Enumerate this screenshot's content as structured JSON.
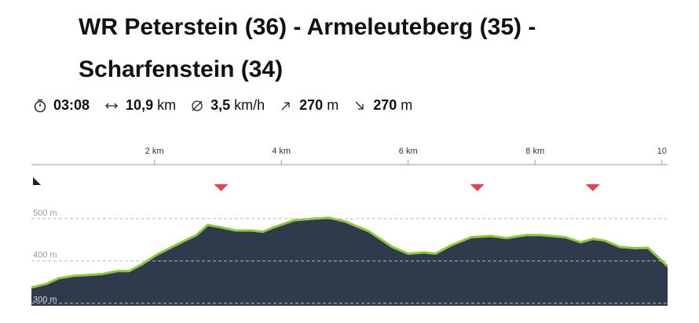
{
  "title": {
    "line1": "WR Peterstein (36) - Armeleuteberg (35) -",
    "line2": "Scharfenstein (34)"
  },
  "stats": {
    "duration": "03:08",
    "distance": "10,9",
    "distance_unit": "km",
    "speed": "3,5",
    "speed_unit": "km/h",
    "ascent": "270",
    "ascent_unit": "m",
    "descent": "270",
    "descent_unit": "m"
  },
  "chart_data": {
    "type": "area",
    "x": [
      0.06,
      0.3,
      0.49,
      0.74,
      0.98,
      1.17,
      1.42,
      1.6,
      1.79,
      2.04,
      2.41,
      2.66,
      2.84,
      3.03,
      3.28,
      3.52,
      3.71,
      3.89,
      4.2,
      4.51,
      4.76,
      5.01,
      5.38,
      5.75,
      6.0,
      6.25,
      6.43,
      6.68,
      6.99,
      7.3,
      7.55,
      7.86,
      8.1,
      8.48,
      8.72,
      8.91,
      9.1,
      9.34,
      9.59,
      9.78,
      9.96,
      10.09
    ],
    "series": [
      {
        "color": "#8dc63f",
        "fill": "#2f3a4c",
        "values": [
          337,
          346,
          359,
          365,
          367,
          369,
          376,
          376,
          391,
          415,
          443,
          461,
          485,
          480,
          472,
          472,
          469,
          480,
          496,
          500,
          502,
          493,
          470,
          433,
          417,
          420,
          417,
          437,
          456,
          459,
          454,
          461,
          461,
          456,
          444,
          452,
          448,
          433,
          430,
          431,
          406,
          387
        ]
      }
    ],
    "waypoints": {
      "color": "#e0464b",
      "x": [
        3.05,
        7.09,
        8.91
      ]
    },
    "xlim": [
      0.06,
      10.09
    ],
    "xticks": [
      {
        "value": 2,
        "label": "2 km"
      },
      {
        "value": 4,
        "label": "4 km"
      },
      {
        "value": 6,
        "label": "6 km"
      },
      {
        "value": 8,
        "label": "8 km"
      },
      10
    ],
    "ylim": [
      294,
      535
    ],
    "yticks": [
      {
        "value": 300,
        "label": "300 m"
      },
      {
        "value": 400,
        "label": "400 m"
      },
      {
        "value": 500,
        "label": "500 m"
      }
    ],
    "grid": true
  }
}
